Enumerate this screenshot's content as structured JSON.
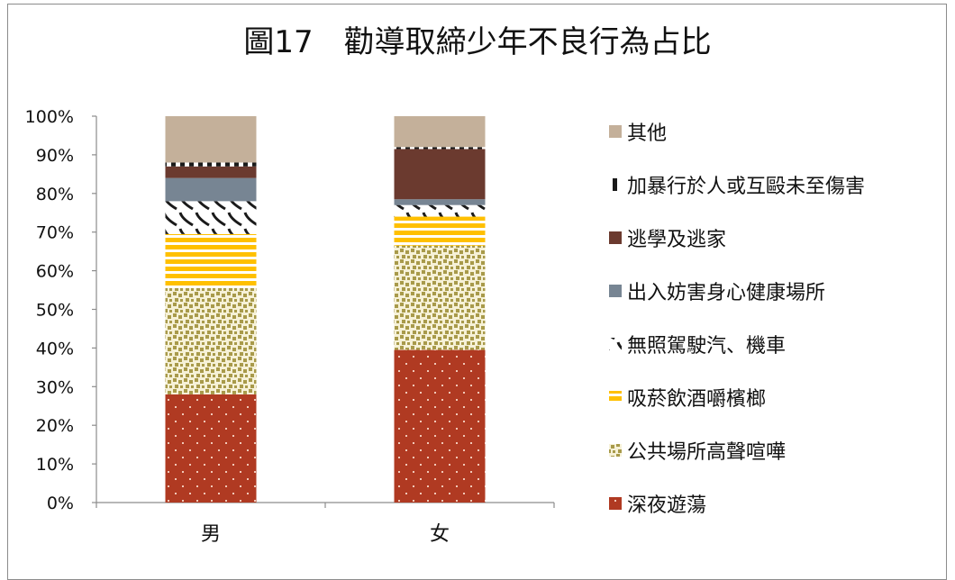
{
  "chart_data": {
    "type": "bar",
    "stacked": true,
    "percent": true,
    "title": "圖17　勸導取締少年不良行為占比",
    "xlabel": "",
    "ylabel": "",
    "ylim": [
      0,
      100
    ],
    "yticks": [
      "0%",
      "10%",
      "20%",
      "30%",
      "40%",
      "50%",
      "60%",
      "70%",
      "80%",
      "90%",
      "100%"
    ],
    "categories": [
      "男",
      "女"
    ],
    "legend_position": "right",
    "grid": false,
    "series": [
      {
        "name": "深夜遊蕩",
        "values": [
          28,
          39.5
        ],
        "color": "#B03A22",
        "pattern": "dots-on-red"
      },
      {
        "name": "公共場所高聲喧嘩",
        "values": [
          27.5,
          27
        ],
        "color": "#A89A4A",
        "pattern": "olive-speckle"
      },
      {
        "name": "吸菸飲酒嚼檳榔",
        "values": [
          14,
          7.5
        ],
        "color": "#FFC000",
        "pattern": "yellow-stripes"
      },
      {
        "name": "無照駕駛汽、機車",
        "values": [
          8.5,
          3
        ],
        "color": "#1A1A1A",
        "pattern": "wave"
      },
      {
        "name": "出入妨害身心健康場所",
        "values": [
          6,
          1.5
        ],
        "color": "#778593",
        "pattern": "solid"
      },
      {
        "name": "逃學及逃家",
        "values": [
          3,
          13
        ],
        "color": "#6B3A2F",
        "pattern": "solid"
      },
      {
        "name": "加暴行於人或互毆未至傷害",
        "values": [
          1,
          0.5
        ],
        "color": "#1A1A1A",
        "pattern": "checker"
      },
      {
        "name": "其他",
        "values": [
          12,
          8
        ],
        "color": "#C4B09A",
        "pattern": "solid"
      }
    ]
  }
}
